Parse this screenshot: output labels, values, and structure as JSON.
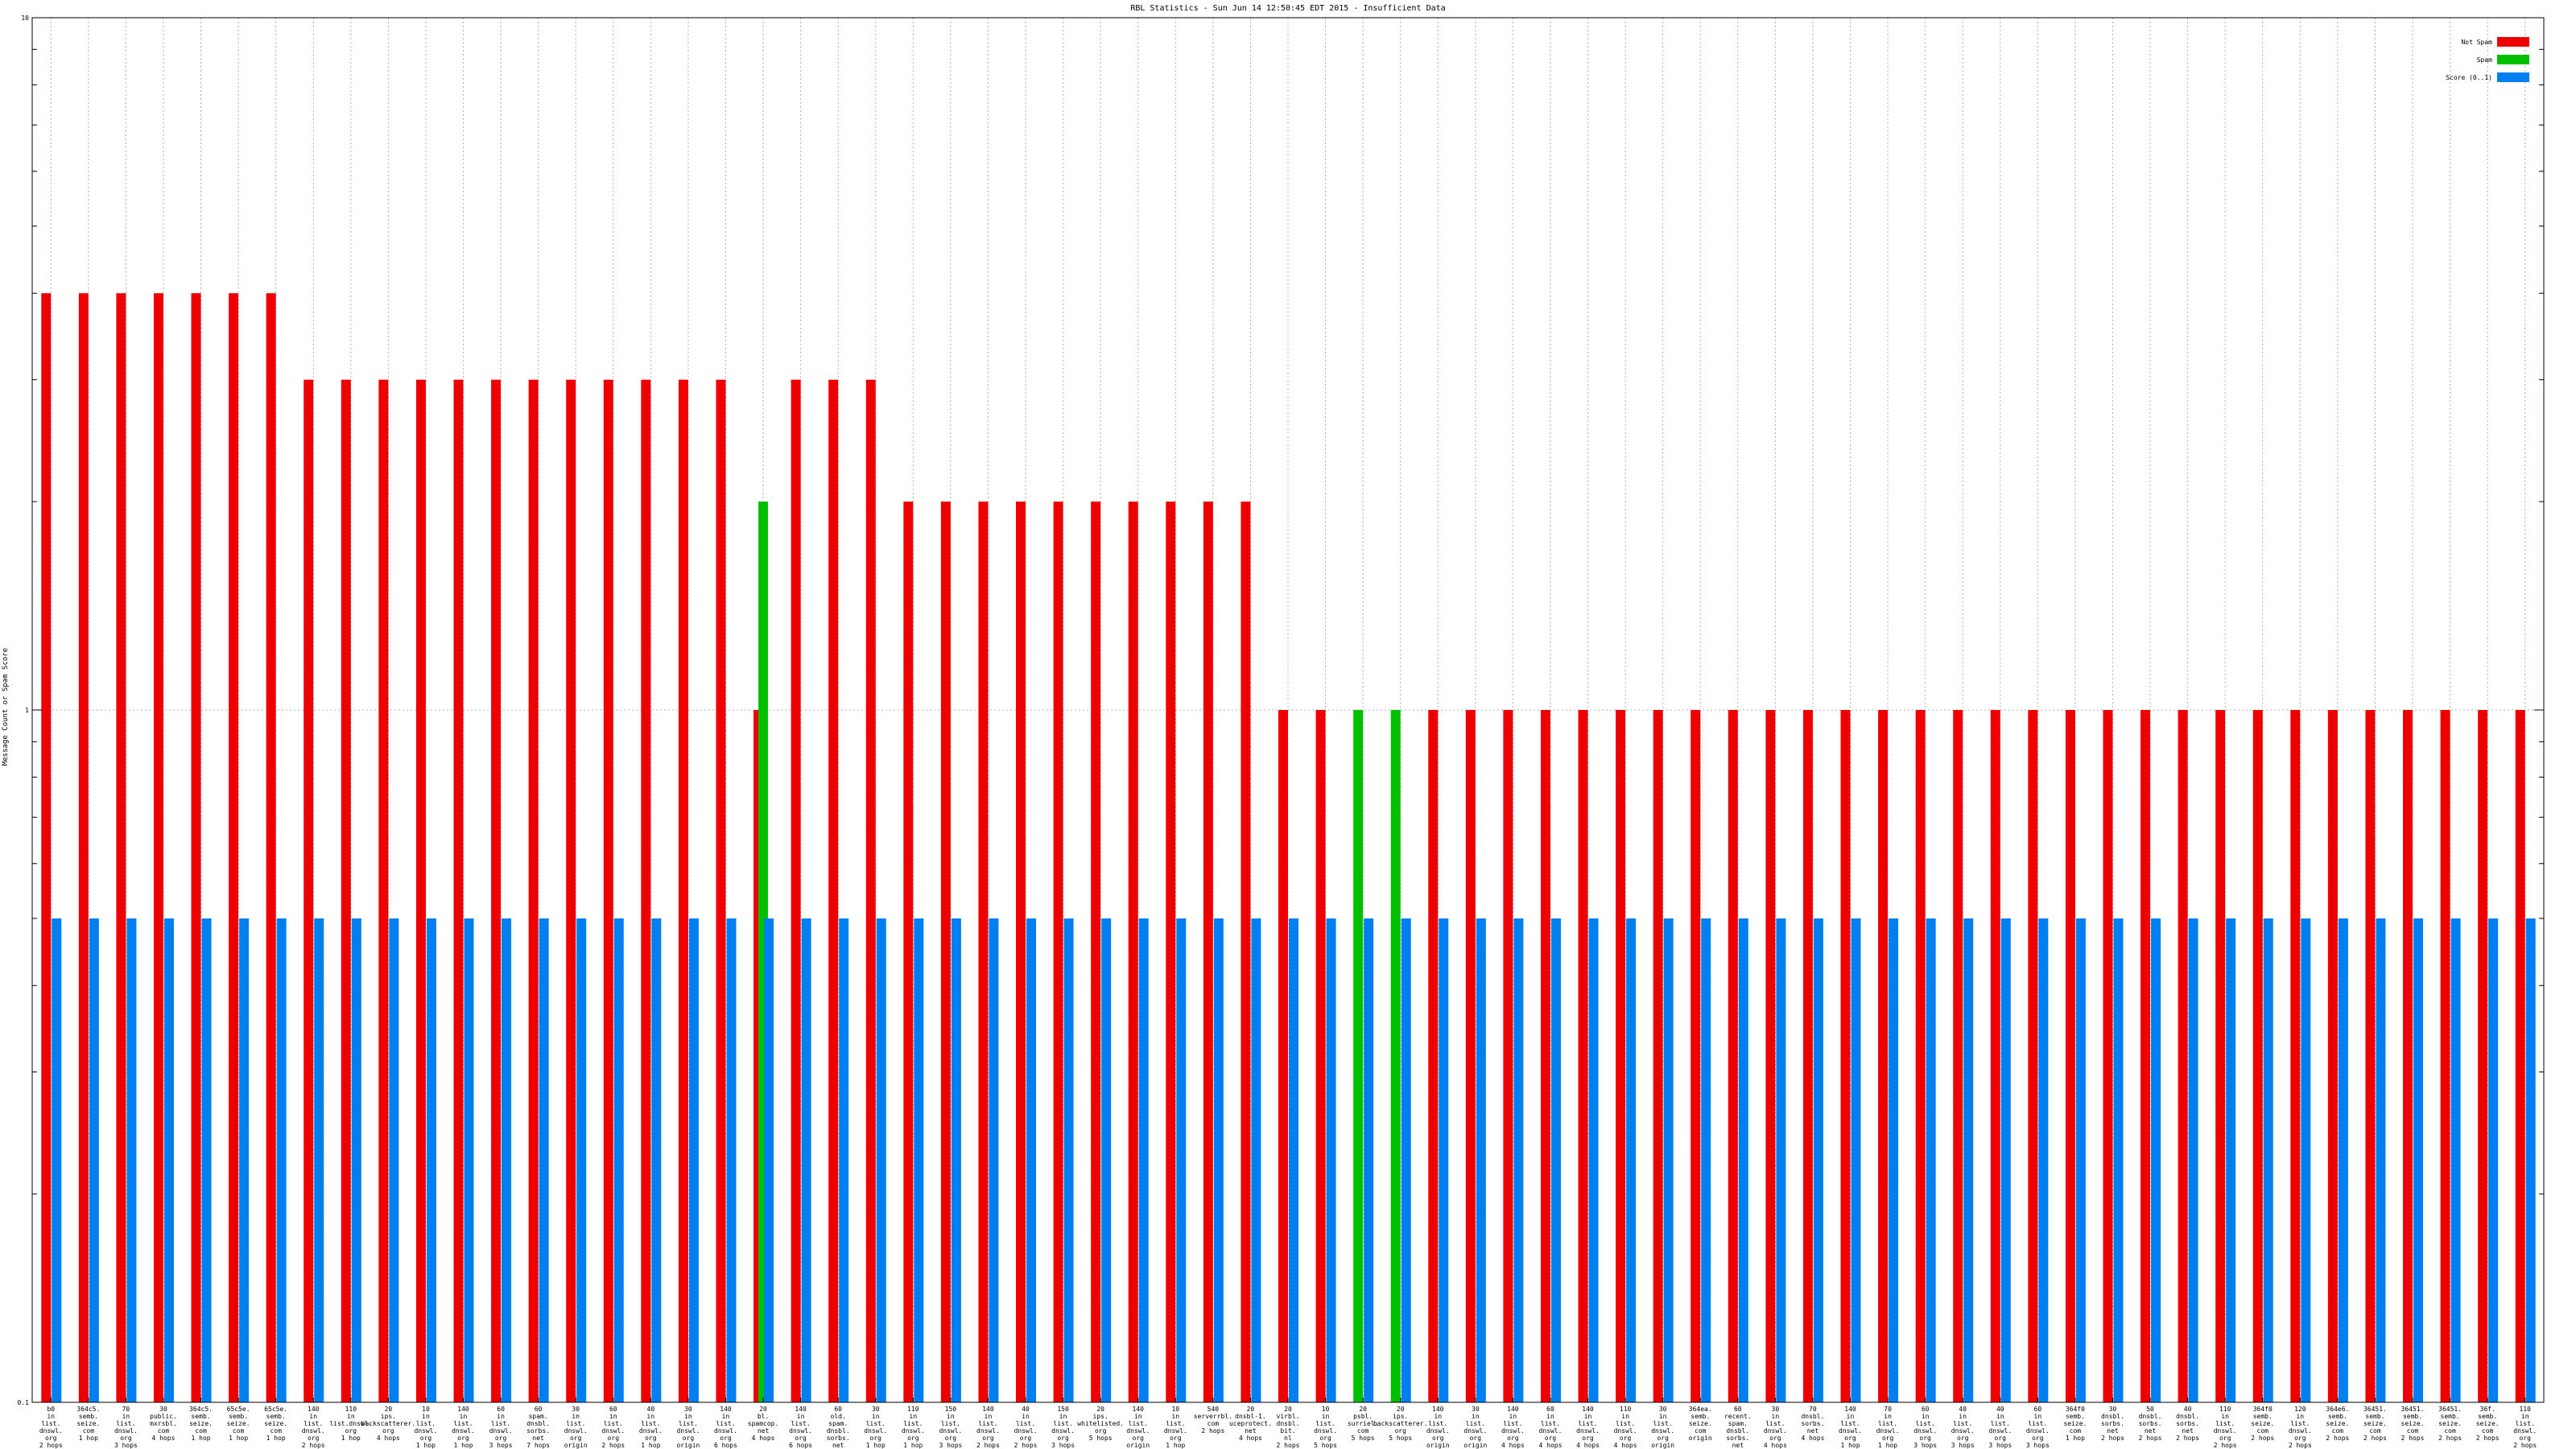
{
  "chart_data": {
    "type": "bar",
    "title": "RBL Statistics - Sun Jun 14 12:50:45 EDT 2015 - Insufficient Data",
    "ylabel": "Message Count or Spam Score",
    "yscale": "log",
    "ylim": [
      0.1,
      10
    ],
    "ytick_labels": [
      "0.1",
      "1",
      "10"
    ],
    "grid": true,
    "legend_position": "top-right",
    "colors": {
      "not_spam": "#ee0000",
      "spam": "#00c000",
      "score": "#0080f0"
    },
    "series": [
      {
        "name": "Not Spam",
        "key": "not_spam"
      },
      {
        "name": "Spam",
        "key": "spam"
      },
      {
        "name": "Score (0..1)",
        "key": "score"
      }
    ],
    "categories": [
      {
        "label": [
          "b0",
          "in",
          "list.",
          "dnswl.",
          "org",
          "2 hops"
        ],
        "not_spam": 4,
        "spam": null,
        "score": 0.5
      },
      {
        "label": [
          "364c5.",
          "semb.",
          "seize.",
          "com",
          "1 hop"
        ],
        "not_spam": 4,
        "spam": null,
        "score": 0.5
      },
      {
        "label": [
          "70",
          "in",
          "list.",
          "dnswl.",
          "org",
          "3 hops"
        ],
        "not_spam": 4,
        "spam": null,
        "score": 0.5
      },
      {
        "label": [
          "30",
          "public.",
          "mxrsbl.",
          "com",
          "4 hops"
        ],
        "not_spam": 4,
        "spam": null,
        "score": 0.5
      },
      {
        "label": [
          "364c5.",
          "semb.",
          "seize.",
          "com",
          "1 hop"
        ],
        "not_spam": 4,
        "spam": null,
        "score": 0.5
      },
      {
        "label": [
          "65c5e.",
          "semb.",
          "seize.",
          "com",
          "1 hop"
        ],
        "not_spam": 4,
        "spam": null,
        "score": 0.5
      },
      {
        "label": [
          "65c5e.",
          "semb.",
          "seize.",
          "com",
          "1 hop"
        ],
        "not_spam": 4,
        "spam": null,
        "score": 0.5
      },
      {
        "label": [
          "140",
          "in",
          "list.",
          "dnswl.",
          "org",
          "2 hops"
        ],
        "not_spam": 3,
        "spam": null,
        "score": 0.5
      },
      {
        "label": [
          "110",
          "in",
          "list.dnswl.",
          "org",
          "1 hop"
        ],
        "not_spam": 3,
        "spam": null,
        "score": 0.5
      },
      {
        "label": [
          "20",
          "ips.",
          "backscatterer.",
          "org",
          "4 hops"
        ],
        "not_spam": 3,
        "spam": null,
        "score": 0.5
      },
      {
        "label": [
          "10",
          "in",
          "list.",
          "dnswl.",
          "org",
          "1 hop"
        ],
        "not_spam": 3,
        "spam": null,
        "score": 0.5
      },
      {
        "label": [
          "140",
          "in",
          "list.",
          "dnswl.",
          "org",
          "1 hop"
        ],
        "not_spam": 3,
        "spam": null,
        "score": 0.5
      },
      {
        "label": [
          "60",
          "in",
          "list.",
          "dnswl.",
          "org",
          "3 hops"
        ],
        "not_spam": 3,
        "spam": null,
        "score": 0.5
      },
      {
        "label": [
          "60",
          "spam.",
          "dnsbl.",
          "sorbs.",
          "net",
          "7 hops"
        ],
        "not_spam": 3,
        "spam": null,
        "score": 0.5
      },
      {
        "label": [
          "30",
          "in",
          "list.",
          "dnswl.",
          "org",
          "origin"
        ],
        "not_spam": 3,
        "spam": null,
        "score": 0.5
      },
      {
        "label": [
          "60",
          "in",
          "list.",
          "dnswl.",
          "org",
          "2 hops"
        ],
        "not_spam": 3,
        "spam": null,
        "score": 0.5
      },
      {
        "label": [
          "40",
          "in",
          "list.",
          "dnswl.",
          "org",
          "1 hop"
        ],
        "not_spam": 3,
        "spam": null,
        "score": 0.5
      },
      {
        "label": [
          "30",
          "in",
          "list.",
          "dnswl.",
          "org",
          "origin"
        ],
        "not_spam": 3,
        "spam": null,
        "score": 0.5
      },
      {
        "label": [
          "140",
          "in",
          "list.",
          "dnswl.",
          "org",
          "6 hops"
        ],
        "not_spam": 3,
        "spam": null,
        "score": 0.5
      },
      {
        "label": [
          "20",
          "bl.",
          "spamcop.",
          "net",
          "4 hops"
        ],
        "not_spam": 1,
        "spam": 2,
        "score": 0.5
      },
      {
        "label": [
          "140",
          "in",
          "list.",
          "dnswl.",
          "org",
          "6 hops"
        ],
        "not_spam": 3,
        "spam": null,
        "score": 0.5
      },
      {
        "label": [
          "60",
          "old.",
          "spam.",
          "dnsbl.",
          "sorbs.",
          "net",
          "2 hops"
        ],
        "not_spam": 3,
        "spam": null,
        "score": 0.5
      },
      {
        "label": [
          "30",
          "in",
          "list.",
          "dnswl.",
          "org",
          "1 hop"
        ],
        "not_spam": 3,
        "spam": null,
        "score": 0.5
      },
      {
        "label": [
          "110",
          "in",
          "list.",
          "dnswl.",
          "org",
          "1 hop"
        ],
        "not_spam": 2,
        "spam": null,
        "score": 0.5
      },
      {
        "label": [
          "150",
          "in",
          "list.",
          "dnswl.",
          "org",
          "3 hops"
        ],
        "not_spam": 2,
        "spam": null,
        "score": 0.5
      },
      {
        "label": [
          "140",
          "in",
          "list.",
          "dnswl.",
          "org",
          "2 hops"
        ],
        "not_spam": 2,
        "spam": null,
        "score": 0.5
      },
      {
        "label": [
          "40",
          "in",
          "list.",
          "dnswl.",
          "org",
          "2 hops"
        ],
        "not_spam": 2,
        "spam": null,
        "score": 0.5
      },
      {
        "label": [
          "150",
          "in",
          "list.",
          "dnswl.",
          "org",
          "3 hops"
        ],
        "not_spam": 2,
        "spam": null,
        "score": 0.5
      },
      {
        "label": [
          "20",
          "ips.",
          "whitelisted.",
          "org",
          "5 hops"
        ],
        "not_spam": 2,
        "spam": null,
        "score": 0.5
      },
      {
        "label": [
          "140",
          "in",
          "list.",
          "dnswl.",
          "org",
          "origin"
        ],
        "not_spam": 2,
        "spam": null,
        "score": 0.5
      },
      {
        "label": [
          "10",
          "in",
          "list.",
          "dnswl.",
          "org",
          "1 hop"
        ],
        "not_spam": 2,
        "spam": null,
        "score": 0.5
      },
      {
        "label": [
          "540",
          "serverrbl.",
          "com",
          "2 hops"
        ],
        "not_spam": 2,
        "spam": null,
        "score": 0.5
      },
      {
        "label": [
          "20",
          "dnsbl-1.",
          "uceprotect.",
          "net",
          "4 hops"
        ],
        "not_spam": 2,
        "spam": null,
        "score": 0.5
      },
      {
        "label": [
          "20",
          "virbl.",
          "dnsbl.",
          "bit.",
          "nl",
          "2 hops"
        ],
        "not_spam": 1,
        "spam": null,
        "score": 0.5
      },
      {
        "label": [
          "10",
          "in",
          "list.",
          "dnswl.",
          "org",
          "5 hops"
        ],
        "not_spam": 1,
        "spam": null,
        "score": 0.5
      },
      {
        "label": [
          "20",
          "psbl.",
          "surriel.",
          "com",
          "5 hops"
        ],
        "not_spam": null,
        "spam": 1,
        "score": 0.5
      },
      {
        "label": [
          "20",
          "ips.",
          "backscatterer.",
          "org",
          "5 hops"
        ],
        "not_spam": null,
        "spam": 1,
        "score": 0.5
      },
      {
        "label": [
          "140",
          "in",
          "list.",
          "dnswl.",
          "org",
          "origin"
        ],
        "not_spam": 1,
        "spam": null,
        "score": 0.5
      },
      {
        "label": [
          "30",
          "in",
          "list.",
          "dnswl.",
          "org",
          "origin"
        ],
        "not_spam": 1,
        "spam": null,
        "score": 0.5
      },
      {
        "label": [
          "140",
          "in",
          "list.",
          "dnswl.",
          "org",
          "4 hops"
        ],
        "not_spam": 1,
        "spam": null,
        "score": 0.5
      },
      {
        "label": [
          "60",
          "in",
          "list.",
          "dnswl.",
          "org",
          "4 hops"
        ],
        "not_spam": 1,
        "spam": null,
        "score": 0.5
      },
      {
        "label": [
          "140",
          "in",
          "list.",
          "dnswl.",
          "org",
          "4 hops"
        ],
        "not_spam": 1,
        "spam": null,
        "score": 0.5
      },
      {
        "label": [
          "110",
          "in",
          "list.",
          "dnswl.",
          "org",
          "4 hops"
        ],
        "not_spam": 1,
        "spam": null,
        "score": 0.5
      },
      {
        "label": [
          "30",
          "in",
          "list.",
          "dnswl.",
          "org",
          "origin"
        ],
        "not_spam": 1,
        "spam": null,
        "score": 0.5
      },
      {
        "label": [
          "364ea.",
          "semb.",
          "seize.",
          "com",
          "origin"
        ],
        "not_spam": 1,
        "spam": null,
        "score": 0.5
      },
      {
        "label": [
          "60",
          "recent.",
          "spam.",
          "dnsbl.",
          "sorbs.",
          "net",
          "4 hops"
        ],
        "not_spam": 1,
        "spam": null,
        "score": 0.5
      },
      {
        "label": [
          "30",
          "in",
          "list.",
          "dnswl.",
          "org",
          "4 hops"
        ],
        "not_spam": 1,
        "spam": null,
        "score": 0.5
      },
      {
        "label": [
          "70",
          "dnsbl.",
          "sorbs.",
          "net",
          "4 hops"
        ],
        "not_spam": 1,
        "spam": null,
        "score": 0.5
      },
      {
        "label": [
          "140",
          "in",
          "list.",
          "dnswl.",
          "org",
          "1 hop"
        ],
        "not_spam": 1,
        "spam": null,
        "score": 0.5
      },
      {
        "label": [
          "70",
          "in",
          "list.",
          "dnswl.",
          "org",
          "1 hop"
        ],
        "not_spam": 1,
        "spam": null,
        "score": 0.5
      },
      {
        "label": [
          "60",
          "in",
          "list.",
          "dnswl.",
          "org",
          "3 hops"
        ],
        "not_spam": 1,
        "spam": null,
        "score": 0.5
      },
      {
        "label": [
          "40",
          "in",
          "list.",
          "dnswl.",
          "org",
          "3 hops"
        ],
        "not_spam": 1,
        "spam": null,
        "score": 0.5
      },
      {
        "label": [
          "40",
          "in",
          "list.",
          "dnswl.",
          "org",
          "3 hops"
        ],
        "not_spam": 1,
        "spam": null,
        "score": 0.5
      },
      {
        "label": [
          "60",
          "in",
          "list.",
          "dnswl.",
          "org",
          "3 hops"
        ],
        "not_spam": 1,
        "spam": null,
        "score": 0.5
      },
      {
        "label": [
          "364f0",
          "semb.",
          "seize.",
          "com",
          "1 hop"
        ],
        "not_spam": 1,
        "spam": null,
        "score": 0.5
      },
      {
        "label": [
          "30",
          "dnsbl.",
          "sorbs.",
          "net",
          "2 hops"
        ],
        "not_spam": 1,
        "spam": null,
        "score": 0.5
      },
      {
        "label": [
          "50",
          "dnsbl.",
          "sorbs.",
          "net",
          "2 hops"
        ],
        "not_spam": 1,
        "spam": null,
        "score": 0.5
      },
      {
        "label": [
          "40",
          "dnsbl.",
          "sorbs.",
          "net",
          "2 hops"
        ],
        "not_spam": 1,
        "spam": null,
        "score": 0.5
      },
      {
        "label": [
          "110",
          "in",
          "list.",
          "dnswl.",
          "org",
          "2 hops"
        ],
        "not_spam": 1,
        "spam": null,
        "score": 0.5
      },
      {
        "label": [
          "364f0",
          "semb.",
          "seize.",
          "com",
          "2 hops"
        ],
        "not_spam": 1,
        "spam": null,
        "score": 0.5
      },
      {
        "label": [
          "120",
          "in",
          "list.",
          "dnswl.",
          "org",
          "2 hops"
        ],
        "not_spam": 1,
        "spam": null,
        "score": 0.5
      },
      {
        "label": [
          "364e6.",
          "semb.",
          "seize.",
          "com",
          "2 hops"
        ],
        "not_spam": 1,
        "spam": null,
        "score": 0.5
      },
      {
        "label": [
          "36451.",
          "semb.",
          "seize.",
          "com",
          "2 hops"
        ],
        "not_spam": 1,
        "spam": null,
        "score": 0.5
      },
      {
        "label": [
          "36451.",
          "semb.",
          "seize.",
          "com",
          "2 hops"
        ],
        "not_spam": 1,
        "spam": null,
        "score": 0.5
      },
      {
        "label": [
          "36451.",
          "semb.",
          "seize.",
          "com",
          "2 hops"
        ],
        "not_spam": 1,
        "spam": null,
        "score": 0.5
      },
      {
        "label": [
          "36f.",
          "semb.",
          "seize.",
          "com",
          "2 hops"
        ],
        "not_spam": 1,
        "spam": null,
        "score": 0.5
      },
      {
        "label": [
          "110",
          "in",
          "list.",
          "dnswl.",
          "org",
          "2 hops"
        ],
        "not_spam": 1,
        "spam": null,
        "score": 0.5
      }
    ]
  }
}
